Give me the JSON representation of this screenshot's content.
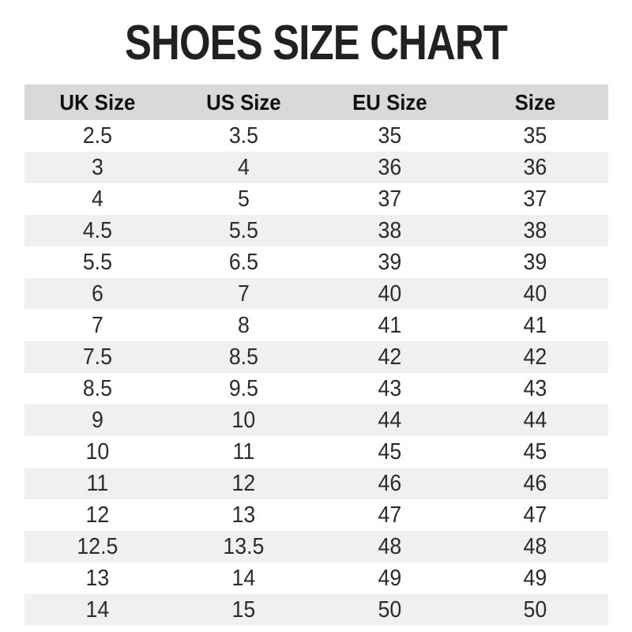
{
  "title": "SHOES SIZE CHART",
  "colors": {
    "header_bg": "#d9d9d7",
    "alt_row_bg": "#f0f0ef",
    "title_color": "#212121",
    "text_color": "#2b2b2b"
  },
  "table": {
    "headers": [
      "UK Size",
      "US Size",
      "EU Size",
      "Size"
    ],
    "rows": [
      [
        "2.5",
        "3.5",
        "35",
        "35"
      ],
      [
        "3",
        "4",
        "36",
        "36"
      ],
      [
        "4",
        "5",
        "37",
        "37"
      ],
      [
        "4.5",
        "5.5",
        "38",
        "38"
      ],
      [
        "5.5",
        "6.5",
        "39",
        "39"
      ],
      [
        "6",
        "7",
        "40",
        "40"
      ],
      [
        "7",
        "8",
        "41",
        "41"
      ],
      [
        "7.5",
        "8.5",
        "42",
        "42"
      ],
      [
        "8.5",
        "9.5",
        "43",
        "43"
      ],
      [
        "9",
        "10",
        "44",
        "44"
      ],
      [
        "10",
        "11",
        "45",
        "45"
      ],
      [
        "11",
        "12",
        "46",
        "46"
      ],
      [
        "12",
        "13",
        "47",
        "47"
      ],
      [
        "12.5",
        "13.5",
        "48",
        "48"
      ],
      [
        "13",
        "14",
        "49",
        "49"
      ],
      [
        "14",
        "15",
        "50",
        "50"
      ]
    ]
  },
  "chart_data": {
    "type": "table",
    "title": "SHOES SIZE CHART",
    "columns": [
      "UK Size",
      "US Size",
      "EU Size",
      "Size"
    ],
    "rows": [
      [
        2.5,
        3.5,
        35,
        35
      ],
      [
        3,
        4,
        36,
        36
      ],
      [
        4,
        5,
        37,
        37
      ],
      [
        4.5,
        5.5,
        38,
        38
      ],
      [
        5.5,
        6.5,
        39,
        39
      ],
      [
        6,
        7,
        40,
        40
      ],
      [
        7,
        8,
        41,
        41
      ],
      [
        7.5,
        8.5,
        42,
        42
      ],
      [
        8.5,
        9.5,
        43,
        43
      ],
      [
        9,
        10,
        44,
        44
      ],
      [
        10,
        11,
        45,
        45
      ],
      [
        11,
        12,
        46,
        46
      ],
      [
        12,
        13,
        47,
        47
      ],
      [
        12.5,
        13.5,
        48,
        48
      ],
      [
        13,
        14,
        49,
        49
      ],
      [
        14,
        15,
        50,
        50
      ]
    ],
    "layout": {
      "header_background": "#d9d9d7",
      "zebra_striping": true,
      "grid": false
    }
  }
}
